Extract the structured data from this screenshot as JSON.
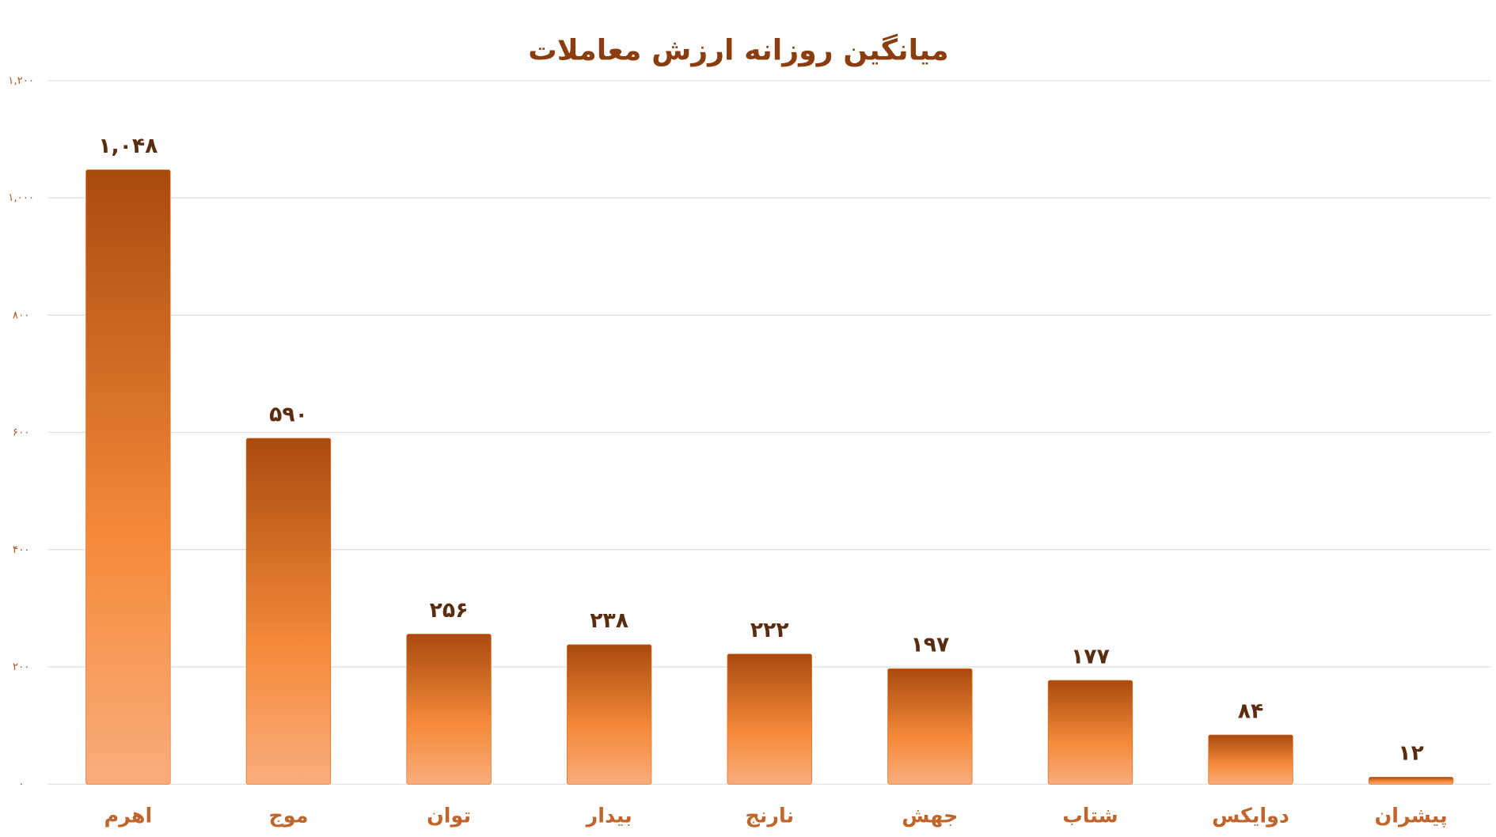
{
  "chart_data": {
    "type": "bar",
    "title": "میانگین روزانه ارزش معاملات",
    "categories": [
      "اهرم",
      "موج",
      "توان",
      "بیدار",
      "نارنج",
      "جهش",
      "شتاب",
      "دوایکس",
      "پیشران"
    ],
    "values": [
      1048,
      590,
      256,
      238,
      222,
      197,
      177,
      84,
      12
    ],
    "value_labels": [
      "۱,۰۴۸",
      "۵۹۰",
      "۲۵۶",
      "۲۳۸",
      "۲۲۲",
      "۱۹۷",
      "۱۷۷",
      "۸۴",
      "۱۲"
    ],
    "color": "#e06f22",
    "ylim": [
      0,
      1200
    ],
    "yticks": [
      {
        "value": 0,
        "label": "۰"
      },
      {
        "value": 200,
        "label": "۲۰۰"
      },
      {
        "value": 400,
        "label": "۴۰۰"
      },
      {
        "value": 600,
        "label": "۶۰۰"
      },
      {
        "value": 800,
        "label": "۸۰۰"
      },
      {
        "value": 1000,
        "label": "۱,۰۰۰"
      },
      {
        "value": 1200,
        "label": "۱,۲۰۰"
      }
    ],
    "grid": true
  }
}
